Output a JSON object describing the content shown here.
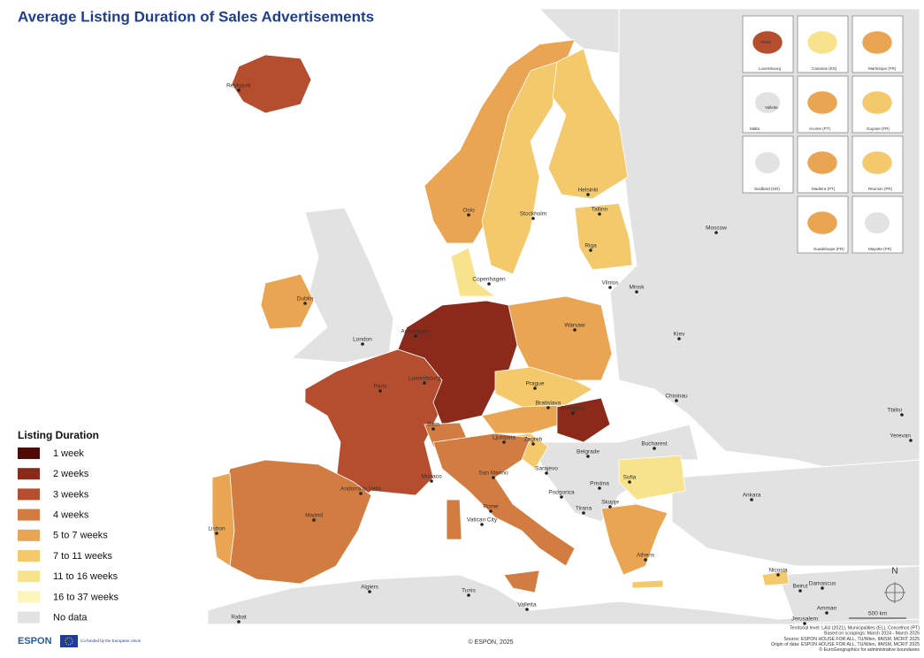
{
  "title": "Average Listing Duration of Sales Advertisements",
  "legend": {
    "title": "Listing Duration",
    "items": [
      {
        "label": "1 week",
        "color": "#4d0a07"
      },
      {
        "label": "2 weeks",
        "color": "#8b2a1a"
      },
      {
        "label": "3 weeks",
        "color": "#b54e2e"
      },
      {
        "label": "4 weeks",
        "color": "#d27c41"
      },
      {
        "label": "5 to 7 weeks",
        "color": "#eaa553"
      },
      {
        "label": "7 to 11 weeks",
        "color": "#f3c96b"
      },
      {
        "label": "11 to 16 weeks",
        "color": "#f8e38d"
      },
      {
        "label": "16 to 37 weeks",
        "color": "#fcf6bb"
      },
      {
        "label": "No data",
        "color": "#e2e2e2"
      }
    ]
  },
  "cities": [
    "Reykjavik",
    "Oslo",
    "Stockholm",
    "Helsinki",
    "Tallinn",
    "Riga",
    "Moscow",
    "Copenhagen",
    "Vilnius",
    "Minsk",
    "Dublin",
    "London",
    "Amsterdam",
    "Warsaw",
    "Kiev",
    "Prague",
    "Luxembourg",
    "Paris",
    "Bratislava",
    "Budapest",
    "Chisinau",
    "Tbilisi",
    "Yerevan",
    "Bern",
    "Ljubljana",
    "Zagreb",
    "Bucharest",
    "Belgrade",
    "Sarajevo",
    "Sofia",
    "Andorra la Vella",
    "San Marino",
    "Monaco",
    "Podgorica",
    "Pristina",
    "Skopje",
    "Ankara",
    "Madrid",
    "Tirana",
    "Rome",
    "Vatican City",
    "Lisbon",
    "Athens",
    "Nicosia",
    "Beirut",
    "Damascus",
    "Algiers",
    "Tunis",
    "Valletta",
    "Amman",
    "Jerusalem",
    "Rabat"
  ],
  "inset_labels": [
    "Vaduz",
    "Luxembourg",
    "Canarias (ES)",
    "Martinique (FR)",
    "Valletta",
    "Malta",
    "Acores (PT)",
    "Guyane (FR)",
    "Svalbard (NO)",
    "Madeira (PT)",
    "Reunion (FR)",
    "Guadeloupe (FR)",
    "Mayotte (FR)"
  ],
  "north": "N",
  "scale": "500 km",
  "footer": {
    "logo": "ESPON",
    "eu": "Co-funded by the European Union",
    "copyright": "© ESPON, 2025",
    "notes": [
      "Territorial level: LAU (2021), Municipalities (EL), Concelhos (PT)",
      "Based on scrapings: March 2024 - March 2025",
      "Source: ESPON HOUSE FOR ALL, TU/Wien, IfAlSM, MCRIT 2025",
      "Origin of data: ESPON HOUSE FOR ALL, TU/Wien, IfAlSM, MCRIT 2025",
      "© EuroGeographics for administrative boundaries"
    ]
  }
}
